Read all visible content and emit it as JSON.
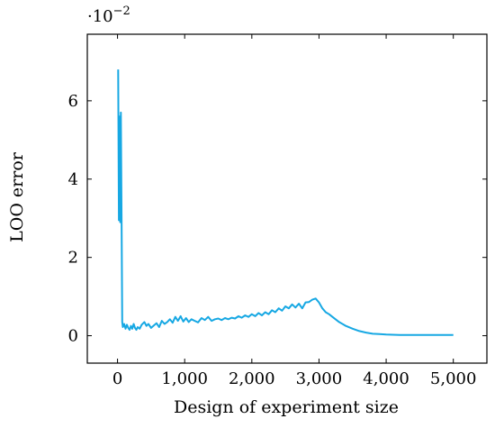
{
  "chart_data": {
    "type": "line",
    "title": "",
    "xlabel": "Design of experiment size",
    "ylabel": "LOO error",
    "scale_note": "·10",
    "scale_exponent": "−2",
    "xlim": [
      -450,
      5500
    ],
    "ylim": [
      -0.7,
      7.7
    ],
    "grid": false,
    "x_ticks": [
      0,
      1000,
      2000,
      3000,
      4000,
      5000
    ],
    "x_tick_labels": [
      "0",
      "1,000",
      "2,000",
      "3,000",
      "4,000",
      "5,000"
    ],
    "y_ticks": [
      0,
      2,
      4,
      6
    ],
    "y_tick_labels": [
      "0",
      "2",
      "4",
      "6"
    ],
    "series": [
      {
        "color": "#17a8e3",
        "x": [
          10,
          20,
          30,
          40,
          50,
          60,
          70,
          80,
          100,
          120,
          140,
          160,
          180,
          200,
          220,
          240,
          260,
          280,
          300,
          330,
          360,
          400,
          430,
          460,
          500,
          540,
          580,
          620,
          660,
          700,
          740,
          780,
          820,
          860,
          900,
          940,
          980,
          1020,
          1060,
          1100,
          1150,
          1200,
          1250,
          1300,
          1350,
          1400,
          1450,
          1500,
          1550,
          1600,
          1650,
          1700,
          1750,
          1800,
          1850,
          1900,
          1950,
          2000,
          2050,
          2100,
          2150,
          2200,
          2250,
          2300,
          2350,
          2400,
          2450,
          2500,
          2550,
          2600,
          2650,
          2700,
          2750,
          2800,
          2850,
          2900,
          2950,
          3000,
          3050,
          3100,
          3150,
          3200,
          3300,
          3400,
          3500,
          3600,
          3700,
          3800,
          3900,
          4000,
          4200,
          4400,
          4600,
          4800,
          5000
        ],
        "values": [
          6.8,
          2.95,
          5.6,
          2.9,
          5.7,
          2.95,
          0.35,
          0.22,
          0.3,
          0.18,
          0.28,
          0.2,
          0.15,
          0.25,
          0.18,
          0.3,
          0.2,
          0.15,
          0.22,
          0.18,
          0.28,
          0.35,
          0.25,
          0.3,
          0.2,
          0.26,
          0.32,
          0.22,
          0.38,
          0.3,
          0.35,
          0.42,
          0.33,
          0.48,
          0.38,
          0.5,
          0.36,
          0.45,
          0.35,
          0.42,
          0.38,
          0.34,
          0.45,
          0.4,
          0.48,
          0.38,
          0.42,
          0.44,
          0.4,
          0.45,
          0.42,
          0.46,
          0.44,
          0.5,
          0.46,
          0.52,
          0.48,
          0.55,
          0.5,
          0.58,
          0.52,
          0.6,
          0.55,
          0.65,
          0.6,
          0.7,
          0.64,
          0.75,
          0.7,
          0.8,
          0.72,
          0.82,
          0.7,
          0.85,
          0.86,
          0.92,
          0.95,
          0.85,
          0.7,
          0.6,
          0.55,
          0.48,
          0.35,
          0.25,
          0.18,
          0.12,
          0.08,
          0.05,
          0.04,
          0.03,
          0.02,
          0.02,
          0.02,
          0.02,
          0.02
        ]
      }
    ]
  }
}
